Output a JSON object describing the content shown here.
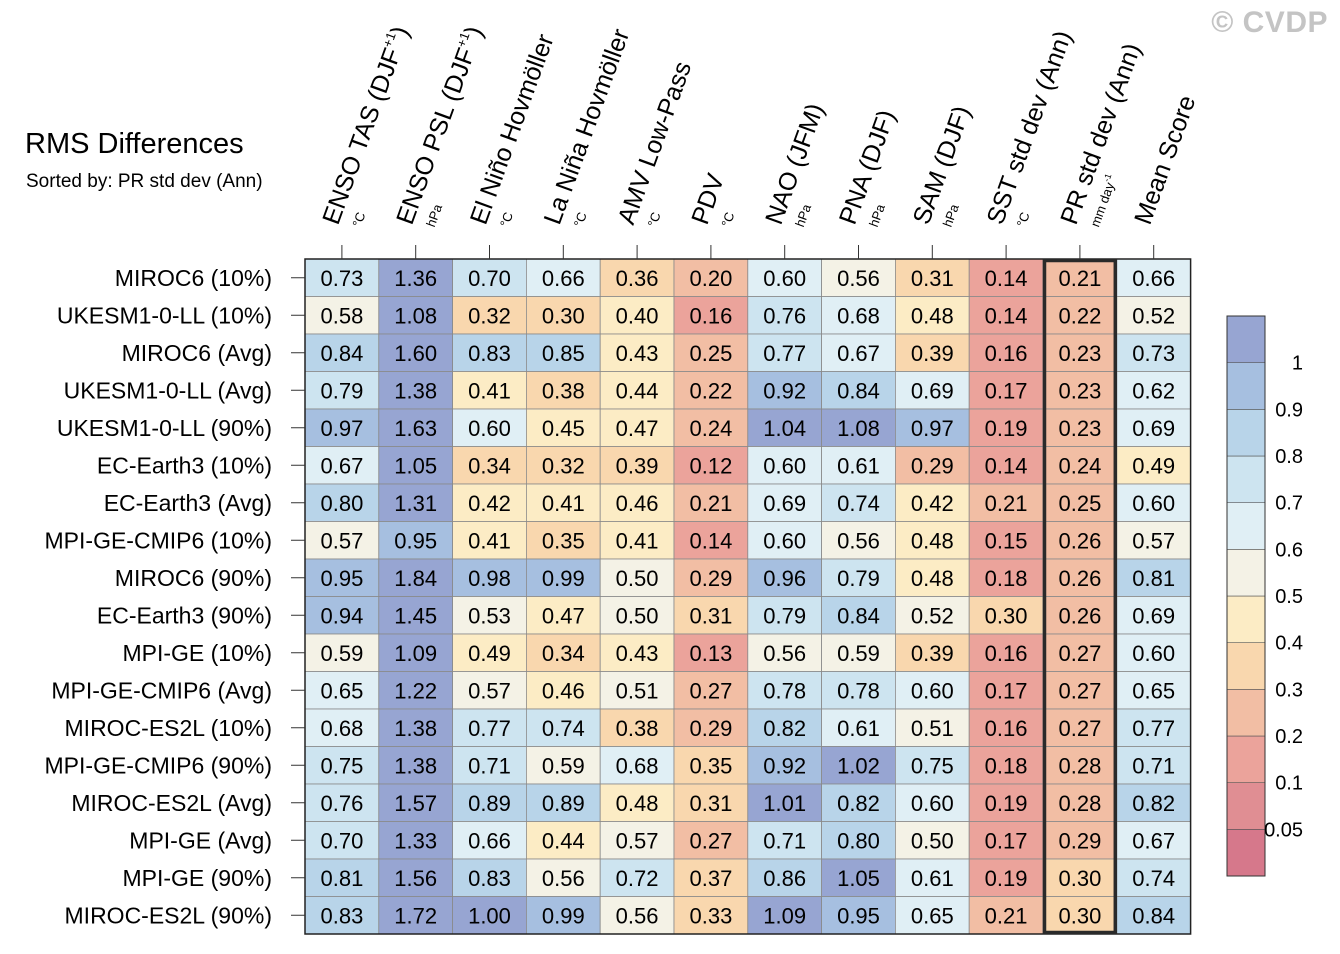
{
  "watermark": "© CVDP",
  "chart_data": {
    "type": "heatmap",
    "title": "RMS Differences",
    "subtitle": "Sorted by: PR std dev (Ann)",
    "columns": [
      {
        "label": "ENSO TAS (DJF",
        "sup": "+1",
        "tail": ")",
        "unit": "°C"
      },
      {
        "label": "ENSO PSL (DJF",
        "sup": "+1",
        "tail": ")",
        "unit": "hPa"
      },
      {
        "label": "El Niño Hovmöller",
        "sup": "",
        "tail": "",
        "unit": "°C"
      },
      {
        "label": "La Niña Hovmöller",
        "sup": "",
        "tail": "",
        "unit": "°C"
      },
      {
        "label": "AMV Low-Pass",
        "sup": "",
        "tail": "",
        "unit": "°C"
      },
      {
        "label": "PDV",
        "sup": "",
        "tail": "",
        "unit": "°C"
      },
      {
        "label": "NAO (JFM)",
        "sup": "",
        "tail": "",
        "unit": "hPa"
      },
      {
        "label": "PNA (DJF)",
        "sup": "",
        "tail": "",
        "unit": "hPa"
      },
      {
        "label": "SAM (DJF)",
        "sup": "",
        "tail": "",
        "unit": "hPa"
      },
      {
        "label": "SST std dev (Ann)",
        "sup": "",
        "tail": "",
        "unit": "°C"
      },
      {
        "label": "PR std dev (Ann)",
        "sup": "",
        "tail": "",
        "unit": "mm day",
        "unit_sup": "-1"
      },
      {
        "label": "Mean Score",
        "sup": "",
        "tail": "",
        "unit": ""
      }
    ],
    "rows": [
      "MIROC6 (10%)",
      "UKESM1-0-LL (10%)",
      "MIROC6 (Avg)",
      "UKESM1-0-LL (Avg)",
      "UKESM1-0-LL (90%)",
      "EC-Earth3 (10%)",
      "EC-Earth3 (Avg)",
      "MPI-GE-CMIP6 (10%)",
      "MIROC6 (90%)",
      "EC-Earth3 (90%)",
      "MPI-GE (10%)",
      "MPI-GE-CMIP6 (Avg)",
      "MIROC-ES2L (10%)",
      "MPI-GE-CMIP6 (90%)",
      "MIROC-ES2L (Avg)",
      "MPI-GE (Avg)",
      "MPI-GE (90%)",
      "MIROC-ES2L (90%)"
    ],
    "values": [
      [
        0.73,
        1.36,
        0.7,
        0.66,
        0.36,
        0.2,
        0.6,
        0.56,
        0.31,
        0.14,
        0.21,
        0.66
      ],
      [
        0.58,
        1.08,
        0.32,
        0.3,
        0.4,
        0.16,
        0.76,
        0.68,
        0.48,
        0.14,
        0.22,
        0.52
      ],
      [
        0.84,
        1.6,
        0.83,
        0.85,
        0.43,
        0.25,
        0.77,
        0.67,
        0.39,
        0.16,
        0.23,
        0.73
      ],
      [
        0.79,
        1.38,
        0.41,
        0.38,
        0.44,
        0.22,
        0.92,
        0.84,
        0.69,
        0.17,
        0.23,
        0.62
      ],
      [
        0.97,
        1.63,
        0.6,
        0.45,
        0.47,
        0.24,
        1.04,
        1.08,
        0.97,
        0.19,
        0.23,
        0.69
      ],
      [
        0.67,
        1.05,
        0.34,
        0.32,
        0.39,
        0.12,
        0.6,
        0.61,
        0.29,
        0.14,
        0.24,
        0.49
      ],
      [
        0.8,
        1.31,
        0.42,
        0.41,
        0.46,
        0.21,
        0.69,
        0.74,
        0.42,
        0.21,
        0.25,
        0.6
      ],
      [
        0.57,
        0.95,
        0.41,
        0.35,
        0.41,
        0.14,
        0.6,
        0.56,
        0.48,
        0.15,
        0.26,
        0.57
      ],
      [
        0.95,
        1.84,
        0.98,
        0.99,
        0.5,
        0.29,
        0.96,
        0.79,
        0.48,
        0.18,
        0.26,
        0.81
      ],
      [
        0.94,
        1.45,
        0.53,
        0.47,
        0.5,
        0.31,
        0.79,
        0.84,
        0.52,
        0.3,
        0.26,
        0.69
      ],
      [
        0.59,
        1.09,
        0.49,
        0.34,
        0.43,
        0.13,
        0.56,
        0.59,
        0.39,
        0.16,
        0.27,
        0.6
      ],
      [
        0.65,
        1.22,
        0.57,
        0.46,
        0.51,
        0.27,
        0.78,
        0.78,
        0.6,
        0.17,
        0.27,
        0.65
      ],
      [
        0.68,
        1.38,
        0.77,
        0.74,
        0.38,
        0.29,
        0.82,
        0.61,
        0.51,
        0.16,
        0.27,
        0.77
      ],
      [
        0.75,
        1.38,
        0.71,
        0.59,
        0.68,
        0.35,
        0.92,
        1.02,
        0.75,
        0.18,
        0.28,
        0.71
      ],
      [
        0.76,
        1.57,
        0.89,
        0.89,
        0.48,
        0.31,
        1.01,
        0.82,
        0.6,
        0.19,
        0.28,
        0.82
      ],
      [
        0.7,
        1.33,
        0.66,
        0.44,
        0.57,
        0.27,
        0.71,
        0.8,
        0.5,
        0.17,
        0.29,
        0.67
      ],
      [
        0.81,
        1.56,
        0.83,
        0.56,
        0.72,
        0.37,
        0.86,
        1.05,
        0.61,
        0.19,
        0.3,
        0.74
      ],
      [
        0.83,
        1.72,
        1.0,
        0.99,
        0.56,
        0.33,
        1.09,
        0.95,
        0.65,
        0.21,
        0.3,
        0.84
      ]
    ],
    "highlighted_column": "PR std dev (Ann)",
    "colorbar": {
      "labels": [
        "1",
        "0.9",
        "0.8",
        "0.7",
        "0.6",
        "0.5",
        "0.4",
        "0.3",
        "0.2",
        "0.1",
        "0.05"
      ],
      "bin_edges": [
        0.05,
        0.1,
        0.2,
        0.3,
        0.4,
        0.5,
        0.6,
        0.7,
        0.8,
        0.9,
        1
      ],
      "colors": [
        "#d6788b",
        "#e08e93",
        "#eba39b",
        "#f2bea4",
        "#f9d7ae",
        "#fcecc5",
        "#f4f2e6",
        "#e0eff5",
        "#cde4f0",
        "#b8d4e9",
        "#a6bfe0",
        "#97a5d2"
      ]
    }
  }
}
